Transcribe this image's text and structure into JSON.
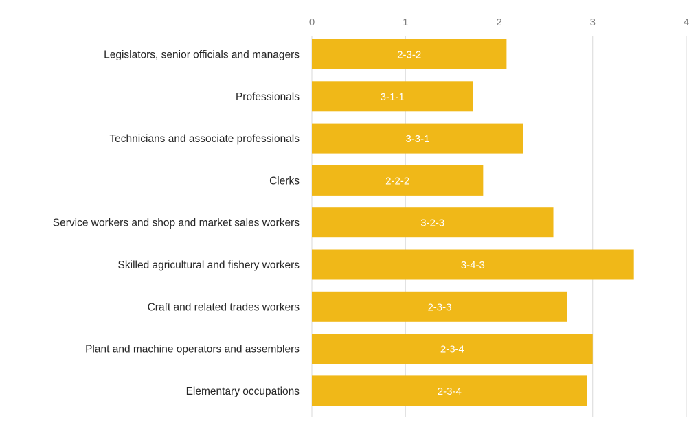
{
  "chart_data": {
    "type": "bar",
    "orientation": "horizontal",
    "title": "",
    "xlabel": "",
    "ylabel": "",
    "xlim": [
      0,
      4
    ],
    "x_ticks": [
      "0",
      "1",
      "2",
      "3",
      "4"
    ],
    "x_axis_position": "top",
    "grid": true,
    "legend": "none",
    "bar_color": "#F0B818",
    "categories": [
      "Legislators, senior officials and managers",
      "Professionals",
      "Technicians and associate professionals",
      "Clerks",
      "Service workers and shop and market sales workers",
      "Skilled agricultural and fishery workers",
      "Craft and related trades workers",
      "Plant and machine operators and assemblers",
      "Elementary occupations"
    ],
    "values": [
      2.08,
      1.72,
      2.26,
      1.83,
      2.58,
      3.44,
      2.73,
      3.0,
      2.94
    ],
    "data_labels": [
      "2-3-2",
      "3-1-1",
      "3-3-1",
      "2-2-2",
      "3-2-3",
      "3-4-3",
      "2-3-3",
      "2-3-4",
      "2-3-4"
    ]
  }
}
